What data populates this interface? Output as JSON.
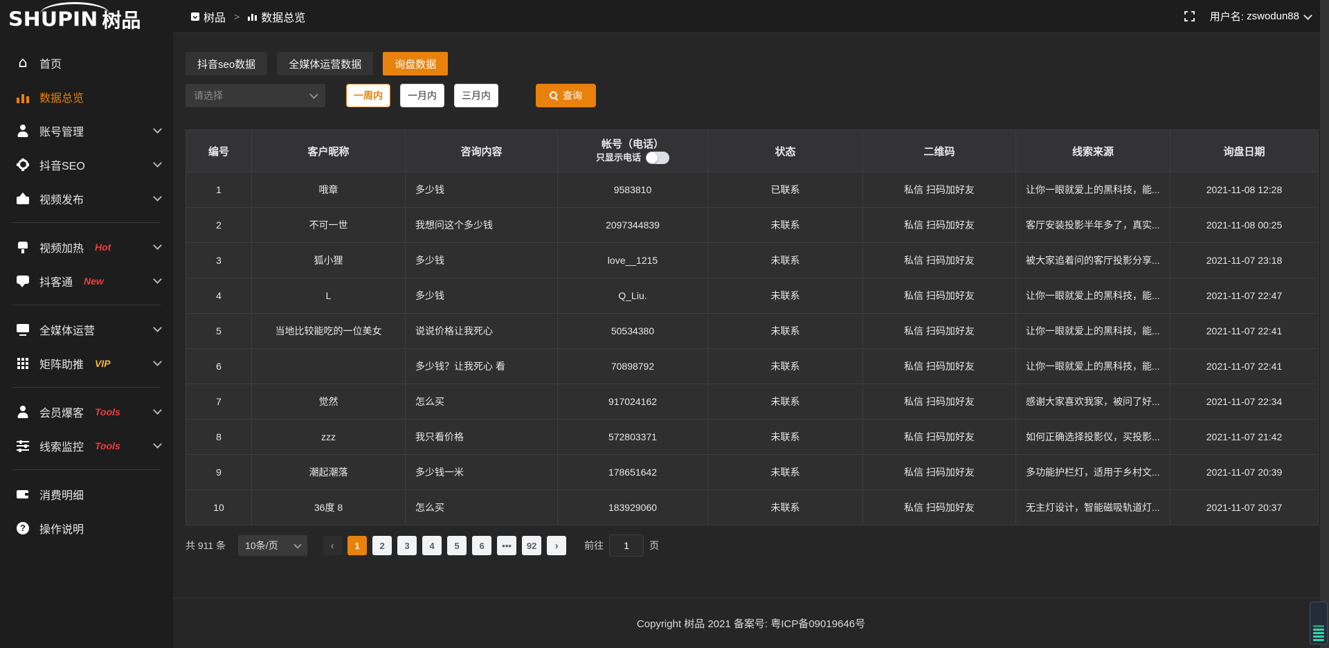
{
  "brand": {
    "logo_en": "SHUPIN",
    "logo_cn": "树品"
  },
  "topbar": {
    "breadcrumb_root": "树品",
    "breadcrumb_sep": ">",
    "breadcrumb_current": "数据总览",
    "username_label": "用户名:",
    "username": "zswodun88"
  },
  "sidebar": {
    "items": [
      {
        "id": "home",
        "label": "首页",
        "icon": "home-icon"
      },
      {
        "id": "data-overview",
        "label": "数据总览",
        "icon": "chart-icon",
        "active": true
      },
      {
        "id": "account-manage",
        "label": "账号管理",
        "icon": "user-icon",
        "chevron": true
      },
      {
        "id": "douyin-seo",
        "label": "抖音SEO",
        "icon": "gear-icon",
        "chevron": true
      },
      {
        "id": "video-publish",
        "label": "视频发布",
        "icon": "video-upload-icon",
        "chevron": true
      },
      {
        "divider": true
      },
      {
        "id": "video-heat",
        "label": "视频加热",
        "icon": "heat-icon",
        "badge": "Hot",
        "badge_color": "#ef3d3d",
        "chevron": true
      },
      {
        "id": "doukaitong",
        "label": "抖客通",
        "icon": "chat-icon",
        "badge": "New",
        "badge_color": "#ef3d3d",
        "chevron": true
      },
      {
        "divider": true
      },
      {
        "id": "media-ops",
        "label": "全媒体运营",
        "icon": "monitor-icon",
        "chevron": true
      },
      {
        "id": "matrix-boost",
        "label": "矩阵助推",
        "icon": "grid-icon",
        "badge": "VIP",
        "badge_color": "#f0b73d",
        "chevron": true
      },
      {
        "divider": true
      },
      {
        "id": "member-baoke",
        "label": "会员爆客",
        "icon": "member-icon",
        "badge": "Tools",
        "badge_color": "#ef3d3d",
        "chevron": true
      },
      {
        "id": "clue-monitor",
        "label": "线索监控",
        "icon": "sliders-icon",
        "badge": "Tools",
        "badge_color": "#ef3d3d",
        "chevron": true
      },
      {
        "divider": true
      },
      {
        "id": "consume-detail",
        "label": "消费明细",
        "icon": "wallet-icon"
      },
      {
        "id": "help",
        "label": "操作说明",
        "icon": "question-icon"
      }
    ]
  },
  "tabs": [
    {
      "label": "抖音seo数据",
      "active": false
    },
    {
      "label": "全媒体运营数据",
      "active": false
    },
    {
      "label": "询盘数据",
      "active": true
    }
  ],
  "filters": {
    "select_placeholder": "请选择",
    "ranges": [
      "一周内",
      "一月内",
      "三月内"
    ],
    "active_range": "一周内",
    "search_label": "查询"
  },
  "table": {
    "columns": [
      "编号",
      "客户昵称",
      "咨询内容",
      "帐号（电话）",
      "状态",
      "二维码",
      "线索来源",
      "询盘日期"
    ],
    "phone_toggle_label": "只显示电话",
    "rows": [
      {
        "no": "1",
        "nickname": "哦章",
        "content": "多少钱",
        "account": "9583810",
        "status": "已联系",
        "contacted": true,
        "qr": "私信 扫码加好友",
        "source": "让你一眼就爱上的黑科技，能...",
        "date": "2021-11-08 12:28"
      },
      {
        "no": "2",
        "nickname": "不可一世",
        "content": "我想问这个多少钱",
        "account": "2097344839",
        "status": "未联系",
        "contacted": false,
        "qr": "私信 扫码加好友",
        "source": "客厅安装投影半年多了，真实...",
        "date": "2021-11-08 00:25"
      },
      {
        "no": "3",
        "nickname": "狐小狸",
        "content": "多少钱",
        "account": "love__1215",
        "status": "未联系",
        "contacted": false,
        "qr": "私信 扫码加好友",
        "source": "被大家追着问的客厅投影分享...",
        "date": "2021-11-07 23:18"
      },
      {
        "no": "4",
        "nickname": "L",
        "content": "多少钱",
        "account": "Q_Liu.",
        "status": "未联系",
        "contacted": false,
        "qr": "私信 扫码加好友",
        "source": "让你一眼就爱上的黑科技，能...",
        "date": "2021-11-07 22:47"
      },
      {
        "no": "5",
        "nickname": "当地比较能吃的一位美女",
        "content": "说说价格让我死心",
        "account": "50534380",
        "status": "未联系",
        "contacted": false,
        "qr": "私信 扫码加好友",
        "source": "让你一眼就爱上的黑科技，能...",
        "date": "2021-11-07 22:41"
      },
      {
        "no": "6",
        "nickname": "",
        "content": "多少钱？让我死心 看",
        "account": "70898792",
        "status": "未联系",
        "contacted": false,
        "qr": "私信 扫码加好友",
        "source": "让你一眼就爱上的黑科技，能...",
        "date": "2021-11-07 22:41"
      },
      {
        "no": "7",
        "nickname": "觉然",
        "content": "怎么买",
        "account": "917024162",
        "status": "未联系",
        "contacted": false,
        "qr": "私信 扫码加好友",
        "source": "感谢大家喜欢我家，被问了好...",
        "date": "2021-11-07 22:34"
      },
      {
        "no": "8",
        "nickname": "zzz",
        "content": "我只看价格",
        "account": "572803371",
        "status": "未联系",
        "contacted": false,
        "qr": "私信 扫码加好友",
        "source": "如何正确选择投影仪，买投影...",
        "date": "2021-11-07 21:42"
      },
      {
        "no": "9",
        "nickname": "潮起潮落",
        "content": "多少钱一米",
        "account": "178651642",
        "status": "未联系",
        "contacted": false,
        "qr": "私信 扫码加好友",
        "source": "多功能护栏灯，适用于乡村文...",
        "date": "2021-11-07 20:39"
      },
      {
        "no": "10",
        "nickname": "36度 8",
        "content": "怎么买",
        "account": "183929060",
        "status": "未联系",
        "contacted": false,
        "qr": "私信 扫码加好友",
        "source": "无主灯设计，智能磁吸轨道灯...",
        "date": "2021-11-07 20:37"
      }
    ]
  },
  "pagination": {
    "total": "共 911 条",
    "page_size": "10条/页",
    "pages": [
      "1",
      "2",
      "3",
      "4",
      "5",
      "6",
      "•••",
      "92"
    ],
    "current": "1",
    "prev_arrow": "‹",
    "next_arrow": "›",
    "goto_label": "前往",
    "goto_value": "1",
    "goto_unit": "页"
  },
  "footer": {
    "copyright": "Copyright 树品 2021 备案号: 粤ICP备09019646号"
  },
  "colors": {
    "accent": "#e8820c",
    "badge_red": "#ef3d3d",
    "badge_yellow": "#f0b73d",
    "teal": "#35d6a6"
  }
}
